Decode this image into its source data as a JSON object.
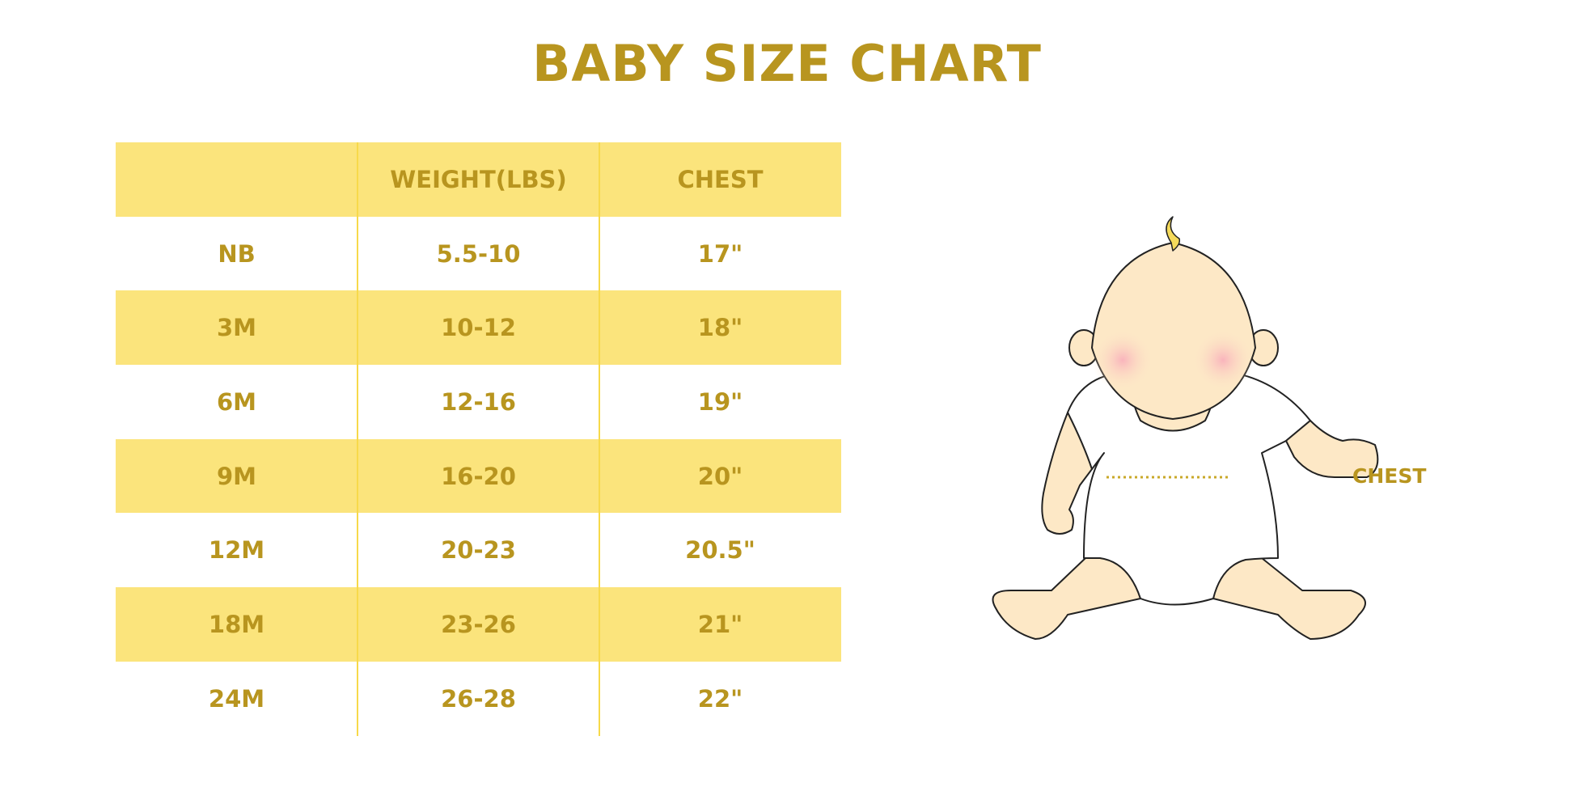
{
  "title": "BABY SIZE CHART",
  "colors": {
    "text": "#B8951F",
    "row_fill": "#FBE47C",
    "divider": "#F7D94A"
  },
  "table": {
    "headers": [
      "",
      "WEIGHT(LBS)",
      "CHEST"
    ],
    "rows": [
      [
        "NB",
        "5.5-10",
        "17\""
      ],
      [
        "3M",
        "10-12",
        "18\""
      ],
      [
        "6M",
        "12-16",
        "19\""
      ],
      [
        "9M",
        "16-20",
        "20\""
      ],
      [
        "12M",
        "20-23",
        "20.5\""
      ],
      [
        "18M",
        "23-26",
        "21\""
      ],
      [
        "24M",
        "26-28",
        "22\""
      ]
    ]
  },
  "illustration": {
    "label": "CHEST",
    "icon": "baby-illustration"
  }
}
